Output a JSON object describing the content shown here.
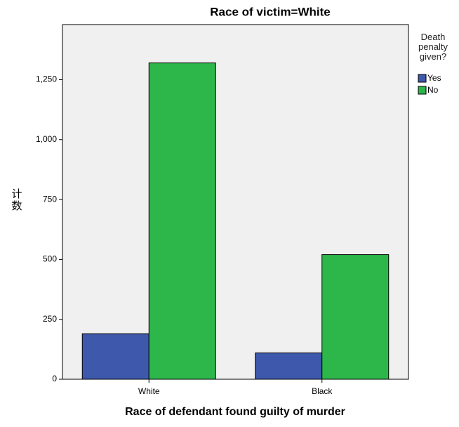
{
  "chart_data": {
    "type": "bar",
    "title": "Race of victim=White",
    "x_label": "Race of defendant found guilty of murder",
    "y_label": "计数",
    "legend_title": "Death penalty given?",
    "categories": [
      "White",
      "Black"
    ],
    "series": [
      {
        "name": "Yes",
        "color": "#3e58ac",
        "values": [
          190,
          110
        ]
      },
      {
        "name": "No",
        "color": "#2db64a",
        "values": [
          1320,
          520
        ]
      }
    ],
    "ylim": [
      0,
      1480
    ],
    "yticks": [
      0,
      250,
      500,
      750,
      {
        "value": 1000,
        "label": "1,000"
      },
      {
        "value": 1250,
        "label": "1,250"
      }
    ]
  }
}
